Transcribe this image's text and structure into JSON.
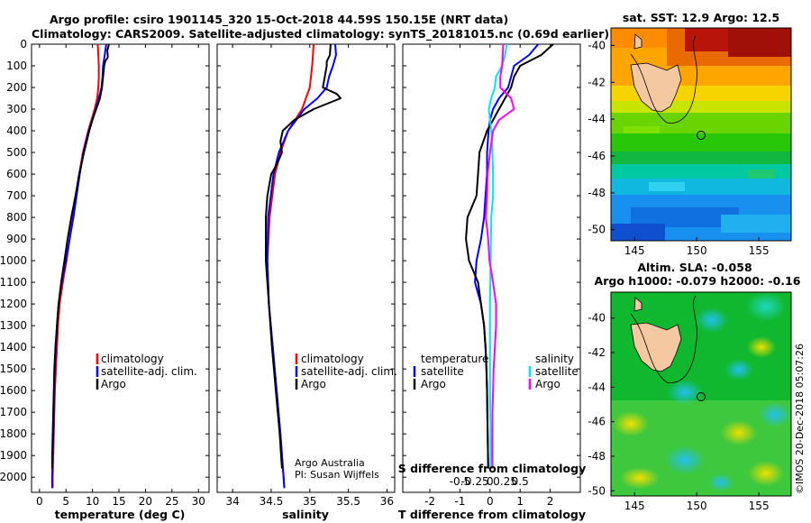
{
  "header": {
    "line1": "Argo profile: csiro 1901145_320 15-Oct-2018 44.59S 150.15E (NRT data)",
    "line2": "Climatology: CARS2009. Satellite-adjusted climatology: synTS_20181015.nc (0.69d earlier)"
  },
  "colors": {
    "climatology": "#ff0000",
    "satellite": "#0000ff",
    "argo": "#000000",
    "sat_salinity": "#00e5ee",
    "argo_salinity": "#ff00ff"
  },
  "depth_axis": {
    "ticks": [
      0,
      100,
      200,
      300,
      400,
      500,
      600,
      700,
      800,
      900,
      1000,
      1100,
      1200,
      1300,
      1400,
      1500,
      1600,
      1700,
      1800,
      1900,
      2000
    ],
    "ylim": [
      0,
      2070
    ]
  },
  "chart_data": [
    {
      "type": "line",
      "name": "temperature-profile",
      "xlabel": "temperature (deg C)",
      "ylabel": "depth",
      "xlim": [
        -1.5,
        32
      ],
      "ylim": [
        0,
        2070
      ],
      "xticks": [
        0,
        5,
        10,
        15,
        20,
        25,
        30
      ],
      "legend": [
        "climatology",
        "satellite-adj. clim.",
        "Argo"
      ],
      "series": [
        {
          "name": "climatology",
          "color": "#ff0000",
          "depth": [
            -20,
            0,
            50,
            100,
            150,
            200,
            250,
            300,
            400,
            500,
            600,
            700,
            800,
            900,
            1000,
            1100,
            1200,
            1300,
            1400,
            1500,
            1600,
            1700,
            1800,
            1900,
            2000,
            2050
          ],
          "values": [
            10.9,
            11.0,
            11.1,
            11.2,
            11.2,
            11.1,
            10.9,
            10.4,
            9.2,
            8.2,
            7.5,
            6.9,
            6.3,
            5.7,
            5.1,
            4.4,
            3.8,
            3.5,
            3.3,
            3.1,
            2.9,
            2.8,
            2.7,
            2.6,
            2.5,
            2.5
          ]
        },
        {
          "name": "satellite-adj. clim.",
          "color": "#0000ff",
          "depth": [
            -20,
            0,
            50,
            100,
            150,
            200,
            250,
            300,
            400,
            500,
            600,
            700,
            800,
            900,
            1000,
            1100,
            1200,
            1300,
            1400,
            1500,
            1600,
            1700,
            1800,
            1900,
            2000,
            2050
          ],
          "values": [
            12.6,
            12.6,
            12.3,
            12.0,
            11.9,
            11.7,
            11.2,
            10.6,
            9.3,
            8.3,
            7.6,
            7.0,
            6.4,
            5.7,
            5.0,
            4.2,
            3.6,
            3.3,
            3.1,
            2.9,
            2.8,
            2.7,
            2.6,
            2.5,
            2.4,
            2.4
          ]
        },
        {
          "name": "Argo",
          "color": "#000000",
          "depth": [
            -20,
            0,
            30,
            60,
            80,
            100,
            150,
            200,
            250,
            280,
            300,
            350,
            400,
            500,
            600,
            700,
            800,
            900,
            1000,
            1100,
            1200,
            1300,
            1400,
            1500,
            1600,
            1700,
            1800,
            1900,
            1960
          ],
          "values": [
            13.0,
            13.1,
            12.8,
            12.9,
            12.4,
            12.2,
            12.0,
            11.8,
            11.4,
            11.0,
            10.7,
            10.0,
            9.4,
            8.4,
            7.5,
            6.8,
            6.0,
            5.3,
            4.7,
            4.1,
            3.6,
            3.3,
            3.0,
            2.8,
            2.7,
            2.6,
            2.5,
            2.4,
            2.4
          ]
        }
      ]
    },
    {
      "type": "line",
      "name": "salinity-profile",
      "xlabel": "salinity",
      "ylabel": "depth",
      "xlim": [
        33.8,
        36.1
      ],
      "ylim": [
        0,
        2070
      ],
      "xticks": [
        34,
        34.5,
        35,
        35.5,
        36
      ],
      "legend": [
        "climatology",
        "satellite-adj. clim.",
        "Argo"
      ],
      "series": [
        {
          "name": "climatology",
          "color": "#ff0000",
          "depth": [
            -20,
            0,
            100,
            200,
            300,
            400,
            500,
            600,
            800,
            1000,
            1200,
            1400,
            1600,
            1800,
            2000,
            2050
          ],
          "values": [
            35.05,
            35.05,
            35.03,
            35.0,
            34.9,
            34.72,
            34.62,
            34.55,
            34.48,
            34.45,
            34.47,
            34.52,
            34.57,
            34.62,
            34.66,
            34.67
          ]
        },
        {
          "name": "satellite-adj. clim.",
          "color": "#0000ff",
          "depth": [
            -20,
            0,
            50,
            100,
            150,
            200,
            250,
            300,
            400,
            500,
            600,
            800,
            1000,
            1200,
            1400,
            1600,
            1800,
            2000,
            2050
          ],
          "values": [
            35.33,
            35.33,
            35.34,
            35.3,
            35.25,
            35.22,
            35.1,
            34.93,
            34.72,
            34.6,
            34.53,
            34.46,
            34.45,
            34.47,
            34.52,
            34.57,
            34.62,
            34.66,
            34.67
          ]
        },
        {
          "name": "Argo",
          "color": "#000000",
          "depth": [
            -20,
            0,
            50,
            80,
            100,
            200,
            230,
            250,
            300,
            350,
            400,
            450,
            500,
            550,
            600,
            700,
            800,
            900,
            1000,
            1100,
            1200,
            1400,
            1600,
            1800,
            1960
          ],
          "values": [
            35.27,
            35.27,
            35.26,
            35.22,
            35.22,
            35.17,
            35.35,
            35.4,
            35.05,
            34.8,
            34.65,
            34.62,
            34.64,
            34.58,
            34.5,
            34.45,
            34.43,
            34.43,
            34.43,
            34.45,
            34.47,
            34.51,
            34.56,
            34.61,
            34.64
          ]
        }
      ],
      "annotations": [
        "Argo Australia",
        "PI: Susan Wijffels"
      ]
    },
    {
      "type": "line",
      "name": "difference-profile",
      "xlabel": "T difference from climatology",
      "xlabel2": "S difference from climatology",
      "ylabel": "depth",
      "xlim": [
        -2.9,
        3.0
      ],
      "ylim": [
        0,
        2070
      ],
      "xticks": [
        -2,
        -1,
        0,
        1,
        2
      ],
      "xticks2": [
        -0.5,
        -0.25,
        0,
        0.25,
        0.5
      ],
      "legend_temperature": {
        "title": "temperature",
        "items": [
          "satellite",
          "Argo"
        ]
      },
      "legend_salinity": {
        "title": "salinity",
        "items": [
          "satellite",
          "Argo"
        ]
      },
      "series": [
        {
          "name": "temperature satellite",
          "color": "#0000ff",
          "depth": [
            -20,
            0,
            50,
            100,
            150,
            200,
            250,
            300,
            350,
            400,
            500,
            600,
            700,
            800,
            900,
            1000,
            1100,
            1200,
            1300,
            1400,
            1500,
            1600,
            1800,
            1960
          ],
          "values": [
            1.6,
            1.6,
            1.3,
            0.8,
            0.7,
            0.6,
            0.3,
            0.1,
            0.0,
            -0.05,
            -0.1,
            -0.1,
            -0.15,
            -0.2,
            -0.3,
            -0.45,
            -0.5,
            -0.3,
            -0.2,
            -0.15,
            -0.12,
            -0.1,
            -0.08,
            -0.06
          ]
        },
        {
          "name": "temperature Argo",
          "color": "#000000",
          "depth": [
            -20,
            0,
            50,
            100,
            150,
            200,
            250,
            300,
            350,
            400,
            500,
            600,
            700,
            800,
            900,
            1000,
            1100,
            1200,
            1300,
            1400,
            1500,
            1600,
            1700,
            1800,
            1960
          ],
          "values": [
            2.1,
            2.1,
            1.7,
            1.0,
            0.8,
            0.7,
            0.5,
            0.3,
            0.1,
            -0.1,
            -0.35,
            -0.4,
            -0.45,
            -0.75,
            -0.8,
            -0.7,
            -0.4,
            -0.3,
            -0.2,
            -0.15,
            -0.12,
            -0.1,
            -0.09,
            -0.08,
            -0.06
          ]
        },
        {
          "name": "salinity satellite",
          "color": "#00e5ee",
          "depth": [
            -20,
            0,
            50,
            100,
            150,
            200,
            250,
            300,
            350,
            400,
            500,
            600,
            700,
            800,
            1000,
            1200,
            1400,
            1600,
            1800,
            1960
          ],
          "values": [
            0.28,
            0.28,
            0.25,
            0.2,
            0.1,
            0.08,
            0.02,
            -0.02,
            0.0,
            0.02,
            0.04,
            0.05,
            0.05,
            0.02,
            0.01,
            0.0,
            0.0,
            0.0,
            0.01,
            0.01
          ]
        },
        {
          "name": "salinity Argo",
          "color": "#ff00ff",
          "depth": [
            -20,
            0,
            50,
            100,
            150,
            200,
            250,
            300,
            350,
            400,
            500,
            600,
            700,
            800,
            900,
            1000,
            1100,
            1200,
            1300,
            1400,
            1500,
            1600,
            1700,
            1800,
            1900,
            1960
          ],
          "values": [
            0.22,
            0.22,
            0.21,
            0.2,
            0.17,
            0.17,
            0.35,
            0.4,
            0.15,
            0.05,
            0.0,
            -0.04,
            -0.05,
            -0.07,
            -0.03,
            -0.01,
            0.05,
            0.1,
            0.1,
            0.08,
            0.06,
            0.05,
            0.04,
            0.04,
            0.04,
            0.04
          ]
        }
      ]
    }
  ],
  "maps": {
    "sst": {
      "title": "sat. SST: 12.9 Argo: 12.5",
      "yticks": [
        "-40",
        "-42",
        "-44",
        "-46",
        "-48",
        "-50"
      ],
      "xticks": [
        "145",
        "150",
        "155"
      ]
    },
    "sla": {
      "title": "Altim. SLA: -0.058",
      "subtitle": "Argo h1000: -0.079 h2000: -0.16",
      "yticks": [
        "-40",
        "-42",
        "-44",
        "-46",
        "-48",
        "-50"
      ],
      "xticks": [
        "145",
        "150",
        "155"
      ]
    }
  },
  "footer": {
    "stamp": "©IMOS 20-Dec-2018 05:07:26"
  }
}
